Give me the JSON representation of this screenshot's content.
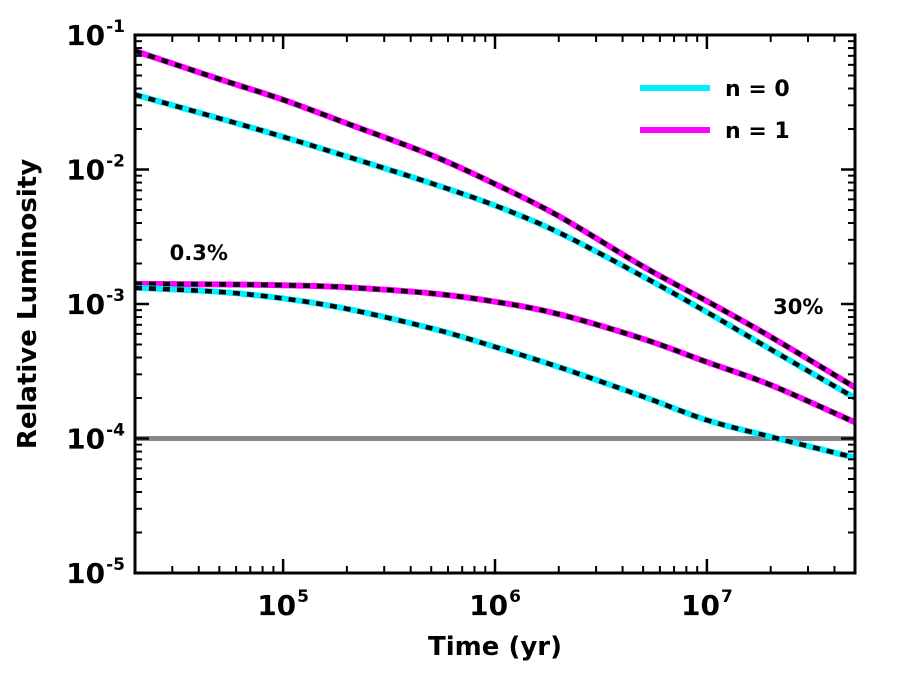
{
  "chart_data": {
    "type": "line",
    "title": "",
    "xlabel": "Time (yr)",
    "ylabel": "Relative Luminosity",
    "xscale": "log",
    "yscale": "log",
    "xlim": [
      20000,
      50000000
    ],
    "ylim": [
      1e-05,
      0.1
    ],
    "x_ticks": [
      {
        "value": 100000,
        "base": "10",
        "exp": "5"
      },
      {
        "value": 1000000,
        "base": "10",
        "exp": "6"
      },
      {
        "value": 10000000,
        "base": "10",
        "exp": "7"
      }
    ],
    "y_ticks": [
      {
        "value": 0.1,
        "base": "10",
        "exp": "-1"
      },
      {
        "value": 0.01,
        "base": "10",
        "exp": "-2"
      },
      {
        "value": 0.001,
        "base": "10",
        "exp": "-3"
      },
      {
        "value": 0.0001,
        "base": "10",
        "exp": "-4"
      },
      {
        "value": 1e-05,
        "base": "10",
        "exp": "-5"
      }
    ],
    "legend": {
      "placement": "top-right",
      "entries": [
        {
          "label": "n = 0",
          "color": "#00f0ff"
        },
        {
          "label": "n = 1",
          "color": "#ff00ff"
        }
      ]
    },
    "series": [
      {
        "name": "n = 1",
        "case": "30%",
        "color": "#ff00ff",
        "x": [
          20000,
          50000,
          100000,
          200000,
          500000,
          1000000,
          2000000,
          5000000,
          10000000,
          20000000,
          50000000
        ],
        "y": [
          0.076,
          0.047,
          0.033,
          0.022,
          0.0128,
          0.0078,
          0.0045,
          0.0019,
          0.00105,
          0.00057,
          0.00024
        ]
      },
      {
        "name": "n = 0",
        "case": "30%",
        "color": "#00f0ff",
        "x": [
          20000,
          50000,
          100000,
          200000,
          500000,
          1000000,
          2000000,
          5000000,
          10000000,
          20000000,
          50000000
        ],
        "y": [
          0.036,
          0.024,
          0.0175,
          0.0125,
          0.0079,
          0.0054,
          0.0034,
          0.0016,
          0.00087,
          0.00046,
          0.0002
        ]
      },
      {
        "name": "n = 1",
        "case": "0.3%",
        "color": "#ff00ff",
        "x": [
          20000,
          50000,
          100000,
          200000,
          500000,
          1000000,
          2000000,
          5000000,
          10000000,
          20000000,
          50000000
        ],
        "y": [
          0.00141,
          0.0014,
          0.00138,
          0.00133,
          0.0012,
          0.00104,
          0.00084,
          0.00055,
          0.00037,
          0.00025,
          0.000132
        ]
      },
      {
        "name": "n = 0",
        "case": "0.3%",
        "color": "#00f0ff",
        "x": [
          20000,
          50000,
          100000,
          200000,
          500000,
          1000000,
          2000000,
          5000000,
          10000000,
          20000000,
          50000000
        ],
        "y": [
          0.00132,
          0.00123,
          0.0011,
          0.00092,
          0.00066,
          0.00048,
          0.00034,
          0.000205,
          0.000137,
          0.000103,
          7.2e-05
        ]
      }
    ],
    "reference_line": {
      "y": 0.0001,
      "color": "#888888"
    },
    "annotations": [
      {
        "text": "0.3%",
        "x": 40000,
        "y": 0.0024
      },
      {
        "text": "30%",
        "x": 27000000,
        "y": 0.00095
      }
    ]
  }
}
